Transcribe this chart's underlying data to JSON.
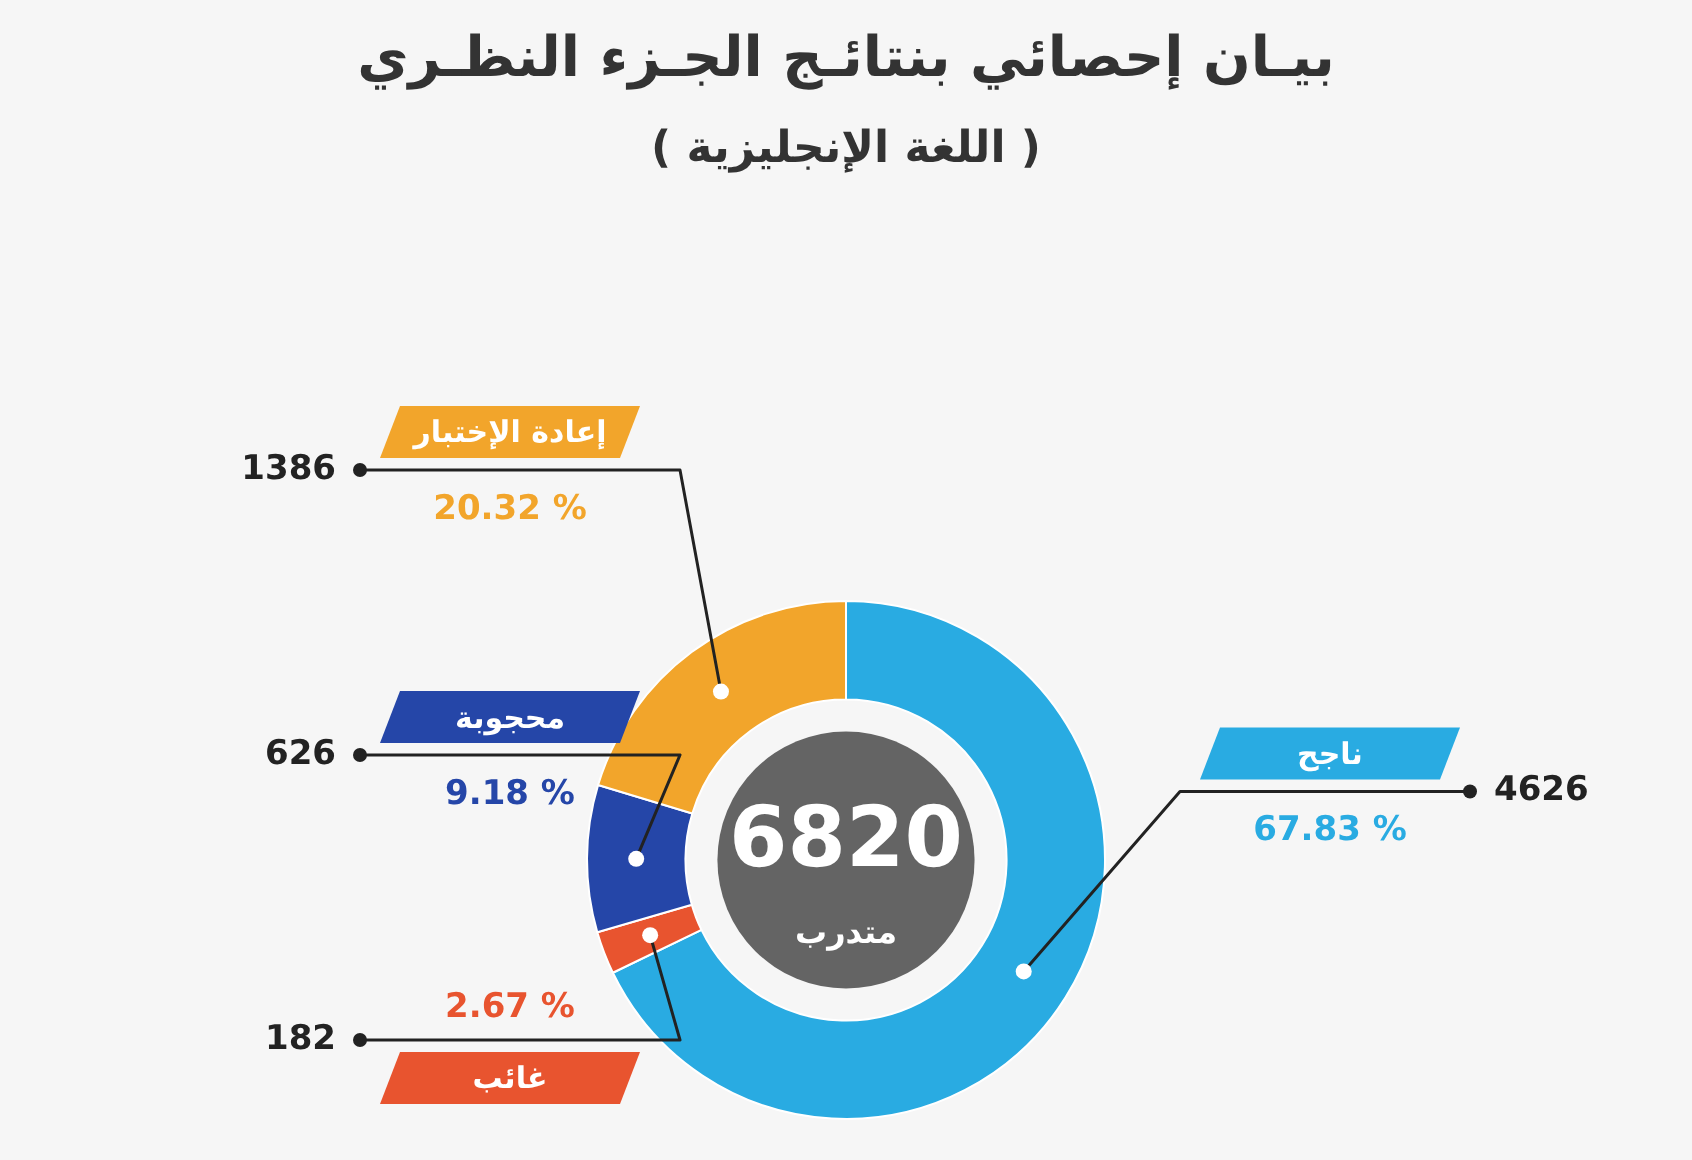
{
  "chart_data": {
    "type": "donut",
    "title": "بيـان إحصائي بنتائـج الجـزء النظـري",
    "subtitle": "( اللغة الإنجليزية )",
    "categories": [
      "ناجح",
      "غائب",
      "محجوبة",
      "إعادة الإختبار"
    ],
    "values": [
      4626,
      182,
      626,
      1386
    ],
    "colors": [
      "#29abe2",
      "#e8542f",
      "#2546a8",
      "#f2a52b"
    ],
    "data_labels": true,
    "annotations": [
      "6820",
      "متدرب",
      "67.83 %",
      "2.67 %",
      "9.18 %",
      "20.32 %"
    ],
    "legend": false
  }
}
